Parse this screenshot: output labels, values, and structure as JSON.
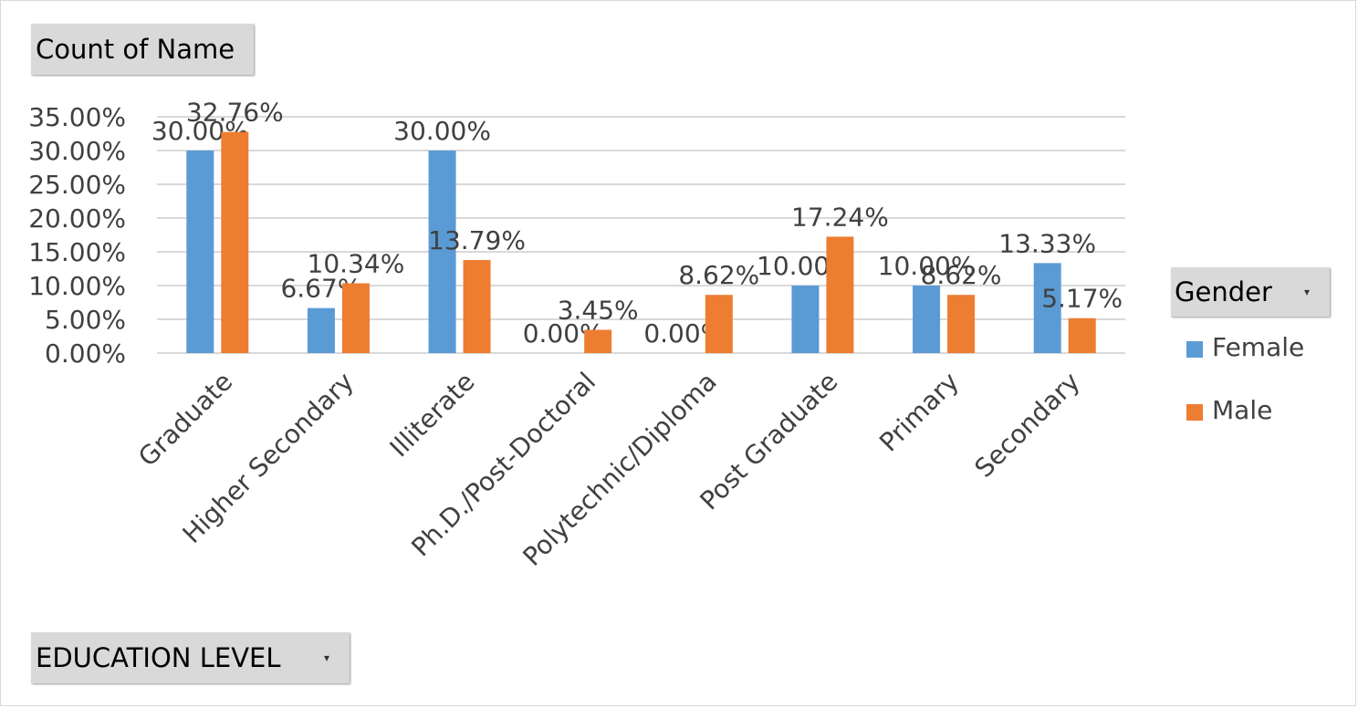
{
  "field_buttons": {
    "values": "Count of Name",
    "axis": "EDUCATION LEVEL",
    "legend": "Gender",
    "dropdown_glyph": "▾"
  },
  "legend": {
    "items": [
      {
        "label": "Female",
        "color": "#5b9bd5"
      },
      {
        "label": "Male",
        "color": "#ed7d31"
      }
    ]
  },
  "chart_data": {
    "type": "bar",
    "categories": [
      "Graduate",
      "Higher Secondary",
      "Illiterate",
      "Ph.D./Post-Doctoral",
      "Polytechnic/Diploma",
      "Post Graduate",
      "Primary",
      "Secondary"
    ],
    "series": [
      {
        "name": "Female",
        "color": "#5b9bd5",
        "values": [
          30.0,
          6.67,
          30.0,
          0.0,
          0.0,
          10.0,
          10.0,
          13.33
        ],
        "labels": [
          "30.00%",
          "6.67%",
          "30.00%",
          "0.00%",
          "0.00%",
          "10.00%",
          "10.00%",
          "13.33%"
        ]
      },
      {
        "name": "Male",
        "color": "#ed7d31",
        "values": [
          32.76,
          10.34,
          13.79,
          3.45,
          8.62,
          17.24,
          8.62,
          5.17
        ],
        "labels": [
          "32.76%",
          "10.34%",
          "13.79%",
          "3.45%",
          "8.62%",
          "17.24%",
          "8.62%",
          "5.17%"
        ]
      }
    ],
    "yticks": [
      "0.00%",
      "5.00%",
      "10.00%",
      "15.00%",
      "20.00%",
      "25.00%",
      "30.00%",
      "35.00%"
    ],
    "ylim": [
      0,
      35
    ],
    "grid": true,
    "legend_position": "right"
  }
}
